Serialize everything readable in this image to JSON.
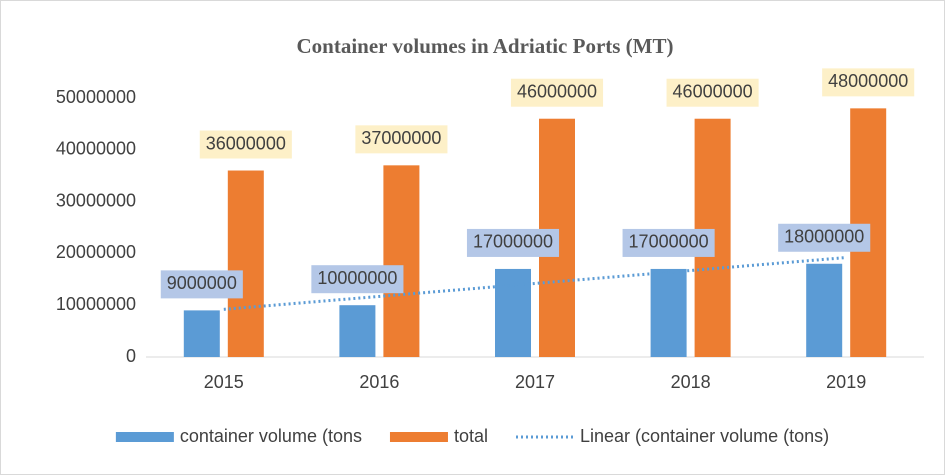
{
  "chart_data": {
    "type": "bar",
    "title": "Container volumes in Adriatic Ports (MT)",
    "categories": [
      "2015",
      "2016",
      "2017",
      "2018",
      "2019"
    ],
    "series": [
      {
        "name": "container volume (tons",
        "color": "#5b9bd5",
        "label_fill": "#b4c7e7",
        "values": [
          9000000,
          10000000,
          17000000,
          17000000,
          18000000
        ]
      },
      {
        "name": "total",
        "color": "#ed7d31",
        "label_fill": "#fdf0c8",
        "values": [
          36000000,
          37000000,
          46000000,
          46000000,
          48000000
        ]
      }
    ],
    "trendline": {
      "type": "linear",
      "name": "Linear (container volume (tons)",
      "color": "#5b9bd5"
    },
    "ylim": [
      0,
      50000000
    ],
    "yticks": [
      0,
      10000000,
      20000000,
      30000000,
      40000000,
      50000000
    ],
    "grid": false,
    "legend": "bottom"
  }
}
